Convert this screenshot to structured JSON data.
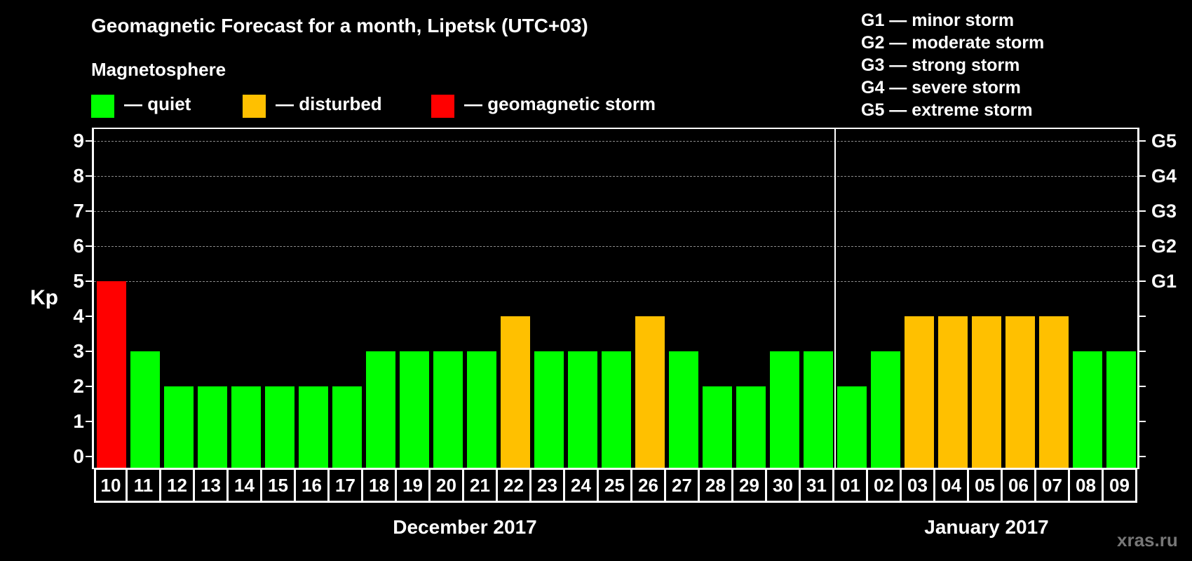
{
  "header": {
    "title": "Geomagnetic Forecast for a month, Lipetsk (UTC+03)",
    "subtitle": "Magnetosphere"
  },
  "legend": {
    "items": [
      {
        "label": "— quiet",
        "color": "#00FF00"
      },
      {
        "label": "— disturbed",
        "color": "#FFC000"
      },
      {
        "label": "— geomagnetic storm",
        "color": "#FF0000"
      }
    ],
    "g_scale": [
      "G1 — minor storm",
      "G2 — moderate storm",
      "G3 — strong storm",
      "G4 — severe storm",
      "G5 — extreme storm"
    ]
  },
  "axes": {
    "ylabel": "Kp",
    "yticks": [
      "0",
      "1",
      "2",
      "3",
      "4",
      "5",
      "6",
      "7",
      "8",
      "9"
    ],
    "right_labels": [
      {
        "kp": 5,
        "label": "G1"
      },
      {
        "kp": 6,
        "label": "G2"
      },
      {
        "kp": 7,
        "label": "G3"
      },
      {
        "kp": 8,
        "label": "G4"
      },
      {
        "kp": 9,
        "label": "G5"
      }
    ],
    "months": [
      {
        "label": "December 2017",
        "start": 0,
        "count": 22
      },
      {
        "label": "January 2017",
        "start": 22,
        "count": 9
      }
    ]
  },
  "watermark": "xras.ru",
  "colors": {
    "quiet": "#00FF00",
    "disturbed": "#FFC000",
    "storm": "#FF0000",
    "grid": "#8A8A8A",
    "background": "#000000"
  },
  "chart_data": {
    "type": "bar",
    "title": "Geomagnetic Forecast for a month, Lipetsk (UTC+03)",
    "xlabel": "",
    "ylabel": "Kp",
    "ylim": [
      0,
      9
    ],
    "grid": true,
    "categories": [
      "10",
      "11",
      "12",
      "13",
      "14",
      "15",
      "16",
      "17",
      "18",
      "19",
      "20",
      "21",
      "22",
      "23",
      "24",
      "25",
      "26",
      "27",
      "28",
      "29",
      "30",
      "31",
      "01",
      "02",
      "03",
      "04",
      "05",
      "06",
      "07",
      "08",
      "09"
    ],
    "values": [
      5,
      3,
      2,
      2,
      2,
      2,
      2,
      2,
      3,
      3,
      3,
      3,
      4,
      3,
      3,
      3,
      4,
      3,
      2,
      2,
      3,
      3,
      2,
      3,
      4,
      4,
      4,
      4,
      4,
      3,
      3
    ],
    "status": [
      "storm",
      "quiet",
      "quiet",
      "quiet",
      "quiet",
      "quiet",
      "quiet",
      "quiet",
      "quiet",
      "quiet",
      "quiet",
      "quiet",
      "disturbed",
      "quiet",
      "quiet",
      "quiet",
      "disturbed",
      "quiet",
      "quiet",
      "quiet",
      "quiet",
      "quiet",
      "quiet",
      "quiet",
      "disturbed",
      "disturbed",
      "disturbed",
      "disturbed",
      "disturbed",
      "quiet",
      "quiet"
    ],
    "month_groups": [
      {
        "label": "December 2017",
        "days": [
          "10",
          "11",
          "12",
          "13",
          "14",
          "15",
          "16",
          "17",
          "18",
          "19",
          "20",
          "21",
          "22",
          "23",
          "24",
          "25",
          "26",
          "27",
          "28",
          "29",
          "30",
          "31"
        ]
      },
      {
        "label": "January 2017",
        "days": [
          "01",
          "02",
          "03",
          "04",
          "05",
          "06",
          "07",
          "08",
          "09"
        ]
      }
    ],
    "legend": [
      "quiet",
      "disturbed",
      "geomagnetic storm"
    ],
    "secondary_axis": {
      "G1": 5,
      "G2": 6,
      "G3": 7,
      "G4": 8,
      "G5": 9
    }
  }
}
